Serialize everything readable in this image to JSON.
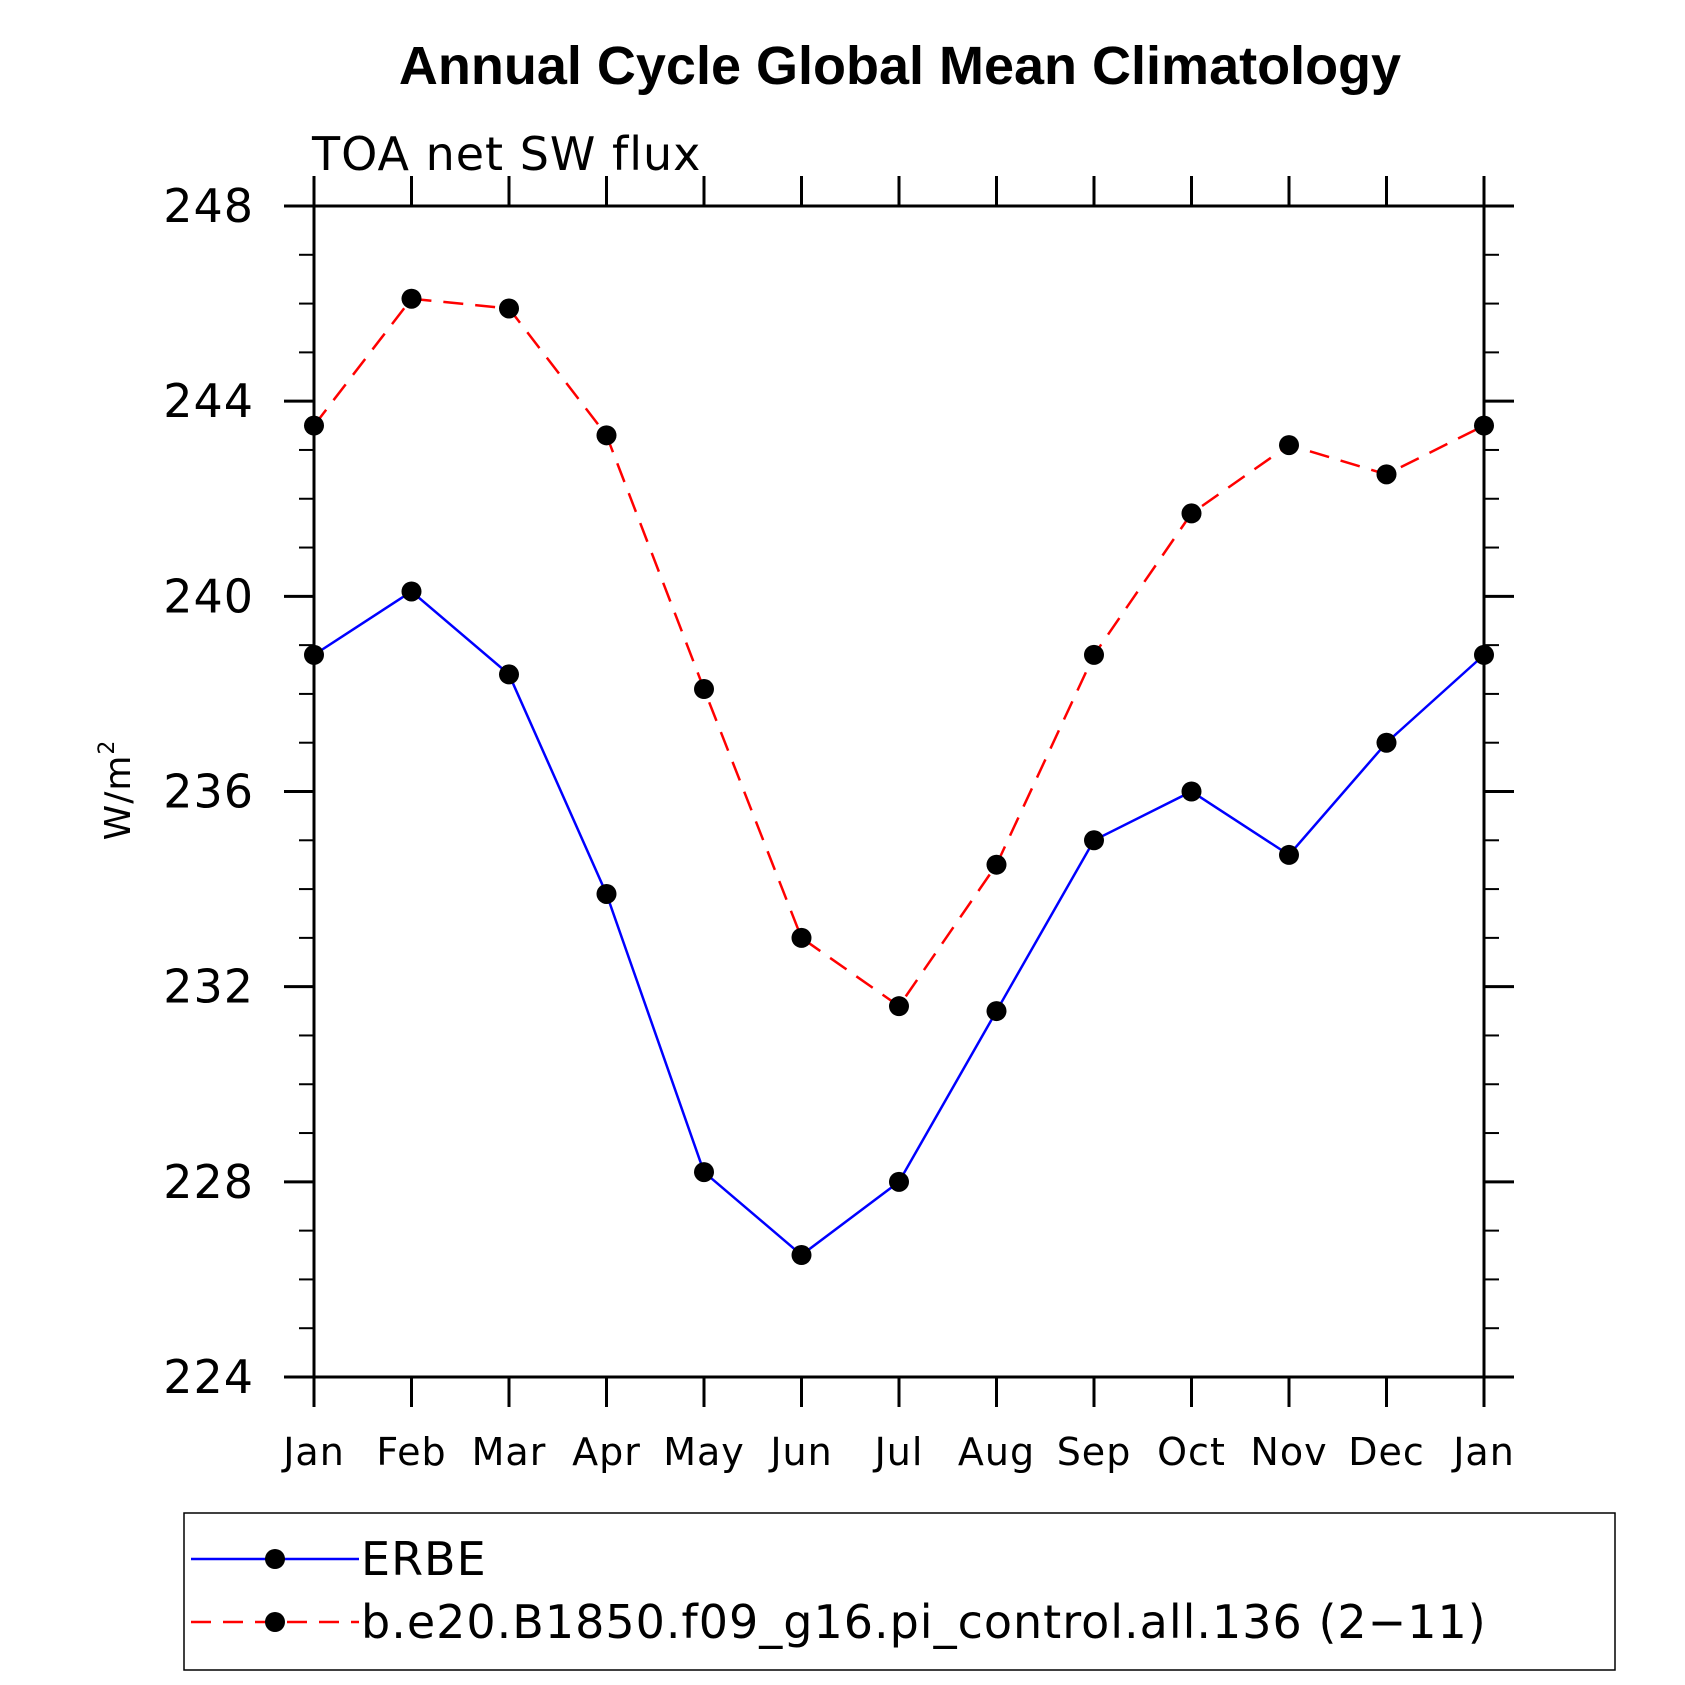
{
  "chart_data": {
    "type": "line",
    "title": "Annual Cycle Global Mean Climatology",
    "subtitle": "TOA net SW flux",
    "ylabel": "W/m",
    "ylabel_superscript": "2",
    "xlabel": "",
    "categories": [
      "Jan",
      "Feb",
      "Mar",
      "Apr",
      "May",
      "Jun",
      "Jul",
      "Aug",
      "Sep",
      "Oct",
      "Nov",
      "Dec",
      "Jan"
    ],
    "ylim": [
      224,
      248
    ],
    "yticks": [
      224,
      228,
      232,
      236,
      240,
      244,
      248
    ],
    "y_minor_step": 1,
    "grid": false,
    "legend_position": "bottom",
    "series": [
      {
        "name": "ERBE",
        "color": "#0000ff",
        "dash": "solid",
        "marker": "circle",
        "values": [
          238.8,
          240.1,
          238.4,
          233.9,
          228.2,
          226.5,
          228.0,
          231.5,
          235.0,
          236.0,
          234.7,
          237.0,
          238.8
        ]
      },
      {
        "name": "b.e20.B1850.f09_g16.pi_control.all.136 (2−11)",
        "color": "#ff0000",
        "dash": "dashed",
        "marker": "circle",
        "values": [
          243.5,
          246.1,
          245.9,
          243.3,
          238.1,
          233.0,
          231.6,
          234.5,
          238.8,
          241.7,
          243.1,
          242.5,
          243.5
        ]
      }
    ]
  }
}
